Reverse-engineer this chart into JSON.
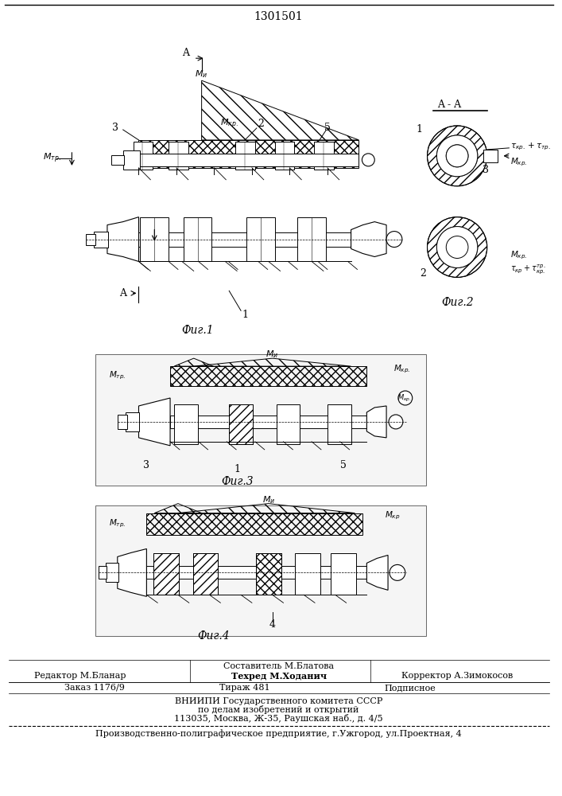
{
  "patent_number": "1301501",
  "fig1_label": "Фиг.1",
  "fig2_label": "Фиг.2",
  "fig3_label": "Фиг.3",
  "fig4_label": "Фиг.4",
  "footer_sostavitel": "Составитель М.Блатова",
  "footer_editor": "Редактор М.Бланар",
  "footer_tech": "Техред М.Ходанич",
  "footer_corrector": "Корректор А.Зимокосов",
  "footer_order": "Заказ 1176/9",
  "footer_tirazh": "Тираж 481",
  "footer_podp": "Подписное",
  "footer_vniipI": "ВНИИПИ Государственного комитета СССР",
  "footer_po_delam": "по делам изобретений и открытий",
  "footer_address": "113035, Москва, Ж-35, Раушская наб., д. 4/5",
  "footer_proizv": "Производственно-полиграфическое предприятие, г.Ужгород, ул.Проектная, 4",
  "bg_color": "#ffffff"
}
